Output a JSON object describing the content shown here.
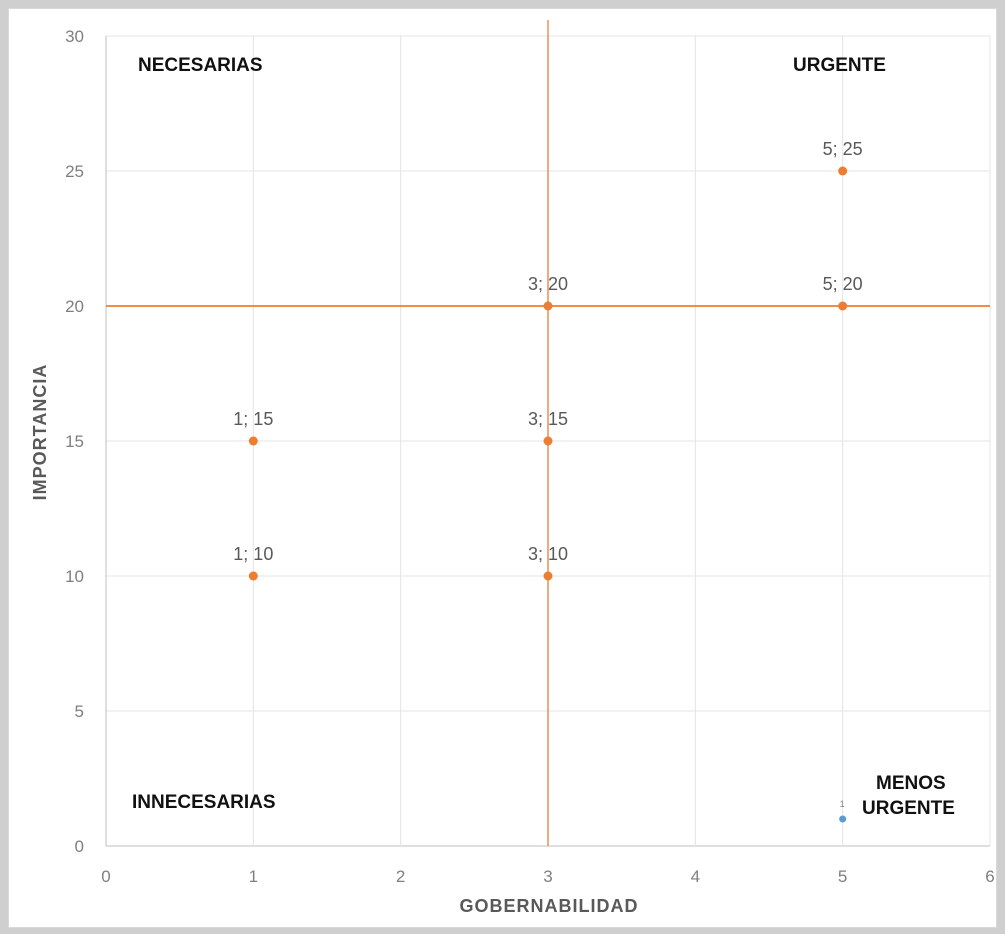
{
  "chart_data": {
    "type": "scatter",
    "title": "",
    "xlabel": "GOBERNABILIDAD",
    "ylabel": "IMPORTANCIA",
    "xlim": [
      0,
      6
    ],
    "ylim": [
      0,
      30
    ],
    "xticks": [
      0,
      1,
      2,
      3,
      4,
      5,
      6
    ],
    "yticks": [
      0,
      5,
      10,
      15,
      20,
      25,
      30
    ],
    "grid": true,
    "reference_lines": {
      "x": 3,
      "y": 20,
      "color": "#ed7d31"
    },
    "quadrant_labels": {
      "top_left": "NECESARIAS",
      "top_right": "URGENTE",
      "bottom_left": "INNECESARIAS",
      "bottom_right_line1": "MENOS",
      "bottom_right_line2": "URGENTE"
    },
    "series": [
      {
        "color": "#ed7d31",
        "points": [
          {
            "x": 5,
            "y": 25,
            "label": "5; 25"
          },
          {
            "x": 3,
            "y": 20,
            "label": "3; 20"
          },
          {
            "x": 5,
            "y": 20,
            "label": "5; 20"
          },
          {
            "x": 1,
            "y": 15,
            "label": "1; 15"
          },
          {
            "x": 3,
            "y": 15,
            "label": "3; 15"
          },
          {
            "x": 1,
            "y": 10,
            "label": "1; 10"
          },
          {
            "x": 3,
            "y": 10,
            "label": "3; 10"
          }
        ]
      },
      {
        "color": "#5b9bd5",
        "points": [
          {
            "x": 5,
            "y": 1,
            "label": "1"
          }
        ]
      }
    ]
  }
}
